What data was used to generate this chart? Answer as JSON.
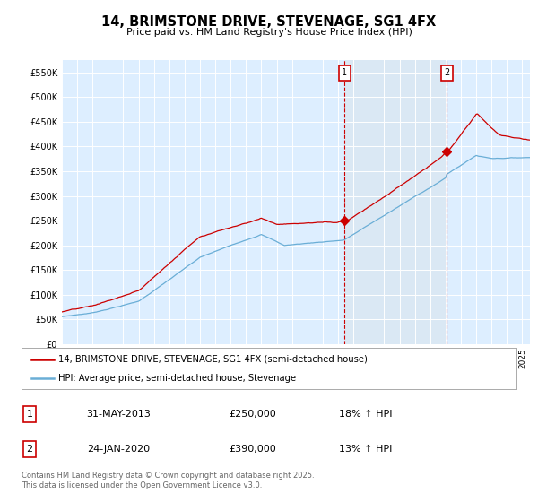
{
  "title": "14, BRIMSTONE DRIVE, STEVENAGE, SG1 4FX",
  "subtitle": "Price paid vs. HM Land Registry's House Price Index (HPI)",
  "legend_line1": "14, BRIMSTONE DRIVE, STEVENAGE, SG1 4FX (semi-detached house)",
  "legend_line2": "HPI: Average price, semi-detached house, Stevenage",
  "sale1_date": "31-MAY-2013",
  "sale1_price": "£250,000",
  "sale1_hpi": "18% ↑ HPI",
  "sale2_date": "24-JAN-2020",
  "sale2_price": "£390,000",
  "sale2_hpi": "13% ↑ HPI",
  "footer": "Contains HM Land Registry data © Crown copyright and database right 2025.\nThis data is licensed under the Open Government Licence v3.0.",
  "red_color": "#cc0000",
  "blue_color": "#6aaed6",
  "shade_color": "#dae8f4",
  "background_color": "#ddeeff",
  "sale1_x": 2013.42,
  "sale2_x": 2020.07,
  "ylim": [
    0,
    575000
  ],
  "xlim_start": 1995.0,
  "xlim_end": 2025.5
}
